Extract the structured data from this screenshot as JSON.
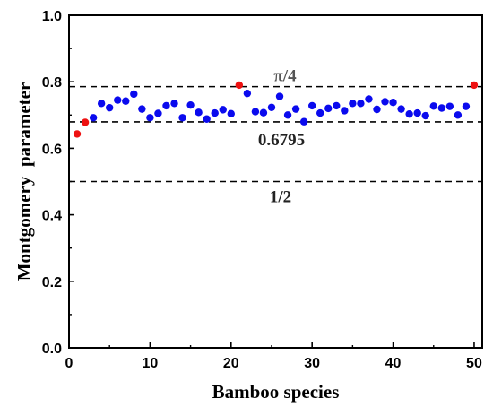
{
  "chart_data": {
    "type": "scatter",
    "title": "",
    "xlabel": "Bamboo species",
    "ylabel": "Montgomery  parameter",
    "xlim": [
      0,
      51
    ],
    "ylim": [
      0.0,
      1.0
    ],
    "x_ticks": [
      0,
      10,
      20,
      30,
      40,
      50
    ],
    "x_tick_labels": [
      "0",
      "10",
      "20",
      "30",
      "40",
      "50"
    ],
    "y_ticks": [
      0.0,
      0.2,
      0.4,
      0.6,
      0.8,
      1.0
    ],
    "y_tick_labels": [
      "0.0",
      "0.2",
      "0.4",
      "0.6",
      "0.8",
      "1.0"
    ],
    "grid": false,
    "reference_lines": [
      {
        "value": 0.7854,
        "label": "π/4",
        "style": "dashed",
        "label_color": "#555555"
      },
      {
        "value": 0.6795,
        "label": "0.6795",
        "style": "dashed",
        "label_color": "#222222"
      },
      {
        "value": 0.5,
        "label": "1/2",
        "style": "dashed",
        "label_color": "#222222"
      }
    ],
    "colors": {
      "normal": "#0a0aee",
      "highlight": "#ee1111"
    },
    "points": [
      {
        "x": 1,
        "y": 0.643,
        "group": "highlight"
      },
      {
        "x": 2,
        "y": 0.678,
        "group": "highlight"
      },
      {
        "x": 3,
        "y": 0.692,
        "group": "normal"
      },
      {
        "x": 4,
        "y": 0.735,
        "group": "normal"
      },
      {
        "x": 5,
        "y": 0.722,
        "group": "normal"
      },
      {
        "x": 6,
        "y": 0.745,
        "group": "normal"
      },
      {
        "x": 7,
        "y": 0.742,
        "group": "normal"
      },
      {
        "x": 8,
        "y": 0.763,
        "group": "normal"
      },
      {
        "x": 9,
        "y": 0.718,
        "group": "normal"
      },
      {
        "x": 10,
        "y": 0.692,
        "group": "normal"
      },
      {
        "x": 11,
        "y": 0.705,
        "group": "normal"
      },
      {
        "x": 12,
        "y": 0.728,
        "group": "normal"
      },
      {
        "x": 13,
        "y": 0.735,
        "group": "normal"
      },
      {
        "x": 14,
        "y": 0.692,
        "group": "normal"
      },
      {
        "x": 15,
        "y": 0.73,
        "group": "normal"
      },
      {
        "x": 16,
        "y": 0.708,
        "group": "normal"
      },
      {
        "x": 17,
        "y": 0.688,
        "group": "normal"
      },
      {
        "x": 18,
        "y": 0.706,
        "group": "normal"
      },
      {
        "x": 19,
        "y": 0.716,
        "group": "normal"
      },
      {
        "x": 20,
        "y": 0.704,
        "group": "normal"
      },
      {
        "x": 21,
        "y": 0.79,
        "group": "highlight"
      },
      {
        "x": 22,
        "y": 0.765,
        "group": "normal"
      },
      {
        "x": 23,
        "y": 0.71,
        "group": "normal"
      },
      {
        "x": 24,
        "y": 0.707,
        "group": "normal"
      },
      {
        "x": 25,
        "y": 0.723,
        "group": "normal"
      },
      {
        "x": 26,
        "y": 0.756,
        "group": "normal"
      },
      {
        "x": 27,
        "y": 0.7,
        "group": "normal"
      },
      {
        "x": 28,
        "y": 0.718,
        "group": "normal"
      },
      {
        "x": 29,
        "y": 0.68,
        "group": "normal"
      },
      {
        "x": 30,
        "y": 0.728,
        "group": "normal"
      },
      {
        "x": 31,
        "y": 0.706,
        "group": "normal"
      },
      {
        "x": 32,
        "y": 0.72,
        "group": "normal"
      },
      {
        "x": 33,
        "y": 0.728,
        "group": "normal"
      },
      {
        "x": 34,
        "y": 0.713,
        "group": "normal"
      },
      {
        "x": 35,
        "y": 0.735,
        "group": "normal"
      },
      {
        "x": 36,
        "y": 0.735,
        "group": "normal"
      },
      {
        "x": 37,
        "y": 0.748,
        "group": "normal"
      },
      {
        "x": 38,
        "y": 0.717,
        "group": "normal"
      },
      {
        "x": 39,
        "y": 0.74,
        "group": "normal"
      },
      {
        "x": 40,
        "y": 0.738,
        "group": "normal"
      },
      {
        "x": 41,
        "y": 0.718,
        "group": "normal"
      },
      {
        "x": 42,
        "y": 0.703,
        "group": "normal"
      },
      {
        "x": 43,
        "y": 0.706,
        "group": "normal"
      },
      {
        "x": 44,
        "y": 0.698,
        "group": "normal"
      },
      {
        "x": 45,
        "y": 0.727,
        "group": "normal"
      },
      {
        "x": 46,
        "y": 0.721,
        "group": "normal"
      },
      {
        "x": 47,
        "y": 0.726,
        "group": "normal"
      },
      {
        "x": 48,
        "y": 0.7,
        "group": "normal"
      },
      {
        "x": 49,
        "y": 0.726,
        "group": "normal"
      },
      {
        "x": 50,
        "y": 0.79,
        "group": "highlight"
      }
    ]
  }
}
